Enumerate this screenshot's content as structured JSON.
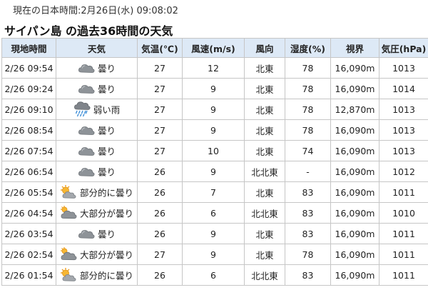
{
  "current_time": "現在の日本時間:2月26日(水) 09:08:02",
  "heading": "サイパン島 の過去36時間の天気",
  "table": {
    "headers": [
      "現地時間",
      "天気",
      "気温(℃)",
      "風速(m/s)",
      "風向",
      "湿度(%)",
      "視界",
      "気圧(hPa)"
    ],
    "rows": [
      {
        "time": "2/26 09:54",
        "icon": "cloudy-icon",
        "cond": "曇り",
        "temp": "27",
        "wind": "12",
        "dir": "北東",
        "hum": "78",
        "vis": "16,090m",
        "pres": "1013"
      },
      {
        "time": "2/26 09:24",
        "icon": "cloudy-icon",
        "cond": "曇り",
        "temp": "27",
        "wind": "9",
        "dir": "北東",
        "hum": "78",
        "vis": "16,090m",
        "pres": "1014"
      },
      {
        "time": "2/26 09:10",
        "icon": "rain-icon",
        "cond": "弱い雨",
        "temp": "27",
        "wind": "9",
        "dir": "北東",
        "hum": "78",
        "vis": "12,870m",
        "pres": "1013"
      },
      {
        "time": "2/26 08:54",
        "icon": "cloudy-icon",
        "cond": "曇り",
        "temp": "27",
        "wind": "9",
        "dir": "北東",
        "hum": "78",
        "vis": "16,090m",
        "pres": "1013"
      },
      {
        "time": "2/26 07:54",
        "icon": "cloudy-icon",
        "cond": "曇り",
        "temp": "27",
        "wind": "10",
        "dir": "北東",
        "hum": "74",
        "vis": "16,090m",
        "pres": "1013"
      },
      {
        "time": "2/26 06:54",
        "icon": "cloudy-icon",
        "cond": "曇り",
        "temp": "26",
        "wind": "9",
        "dir": "北北東",
        "hum": "-",
        "vis": "16,090m",
        "pres": "1012"
      },
      {
        "time": "2/26 05:54",
        "icon": "partly-cloudy-icon",
        "cond": "部分的に曇り",
        "temp": "26",
        "wind": "7",
        "dir": "北東",
        "hum": "83",
        "vis": "16,090m",
        "pres": "1011"
      },
      {
        "time": "2/26 04:54",
        "icon": "mostly-cloudy-icon",
        "cond": "大部分が曇り",
        "temp": "26",
        "wind": "6",
        "dir": "北北東",
        "hum": "83",
        "vis": "16,090m",
        "pres": "1010"
      },
      {
        "time": "2/26 03:54",
        "icon": "cloudy-icon",
        "cond": "曇り",
        "temp": "26",
        "wind": "9",
        "dir": "北東",
        "hum": "83",
        "vis": "16,090m",
        "pres": "1011"
      },
      {
        "time": "2/26 02:54",
        "icon": "mostly-cloudy-icon",
        "cond": "大部分が曇り",
        "temp": "27",
        "wind": "9",
        "dir": "北東",
        "hum": "78",
        "vis": "16,090m",
        "pres": "1011"
      },
      {
        "time": "2/26 01:54",
        "icon": "partly-cloudy-icon",
        "cond": "部分的に曇り",
        "temp": "26",
        "wind": "6",
        "dir": "北北東",
        "hum": "83",
        "vis": "16,090m",
        "pres": "1011"
      }
    ]
  }
}
